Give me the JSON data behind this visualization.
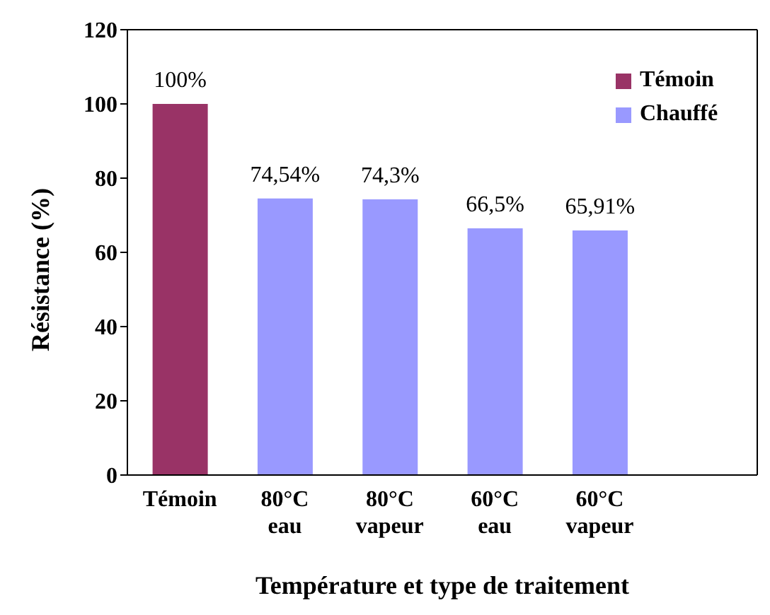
{
  "chart_data": {
    "type": "bar",
    "xlabel": "Température et type de traitement",
    "ylabel": "Résistance  (%)",
    "categories": [
      "Témoin",
      "80°C\neau",
      "80°C\nvapeur",
      "60°C\neau",
      "60°C\nvapeur",
      null
    ],
    "series": [
      {
        "name": "Témoin",
        "color": "#993366",
        "values": [
          100,
          null,
          null,
          null,
          null,
          null
        ],
        "value_labels": [
          "100%",
          null,
          null,
          null,
          null,
          null
        ]
      },
      {
        "name": "Chauffé",
        "color": "#9999ff",
        "values": [
          null,
          74.54,
          74.3,
          66.5,
          65.91,
          null
        ],
        "value_labels": [
          null,
          "74,54%",
          "74,3%",
          "66,5%",
          "65,91%",
          null
        ]
      }
    ],
    "stacked": true,
    "ylim": [
      0,
      120
    ],
    "yticks": [
      0,
      20,
      40,
      60,
      80,
      100,
      120
    ],
    "grid": false,
    "legend": "top right"
  }
}
